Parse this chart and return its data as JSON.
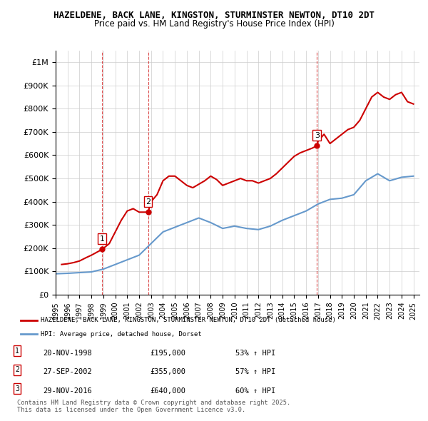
{
  "title": "HAZELDENE, BACK LANE, KINGSTON, STURMINSTER NEWTON, DT10 2DT",
  "subtitle": "Price paid vs. HM Land Registry's House Price Index (HPI)",
  "red_label": "HAZELDENE, BACK LANE, KINGSTON, STURMINSTER NEWTON, DT10 2DT (detached house)",
  "blue_label": "HPI: Average price, detached house, Dorset",
  "transactions": [
    {
      "num": 1,
      "date": "20-NOV-1998",
      "price": 195000,
      "hpi_pct": "53% ↑ HPI",
      "year": 1998.9
    },
    {
      "num": 2,
      "date": "27-SEP-2002",
      "price": 355000,
      "hpi_pct": "57% ↑ HPI",
      "year": 2002.75
    },
    {
      "num": 3,
      "date": "29-NOV-2016",
      "price": 640000,
      "hpi_pct": "60% ↑ HPI",
      "year": 2016.9
    }
  ],
  "footnote": "Contains HM Land Registry data © Crown copyright and database right 2025.\nThis data is licensed under the Open Government Licence v3.0.",
  "ylim": [
    0,
    1050000
  ],
  "xlim_start": 1995,
  "xlim_end": 2025.5,
  "red_color": "#cc0000",
  "blue_color": "#6699cc",
  "vline_color": "#cc0000",
  "grid_color": "#cccccc",
  "bg_color": "#ffffff",
  "hpi_x": [
    1995,
    1996,
    1997,
    1998,
    1999,
    2000,
    2001,
    2002,
    2003,
    2004,
    2005,
    2006,
    2007,
    2008,
    2009,
    2010,
    2011,
    2012,
    2013,
    2014,
    2015,
    2016,
    2017,
    2018,
    2019,
    2020,
    2021,
    2022,
    2023,
    2024,
    2025
  ],
  "hpi_y": [
    90000,
    92000,
    95000,
    98000,
    110000,
    130000,
    150000,
    170000,
    220000,
    270000,
    290000,
    310000,
    330000,
    310000,
    285000,
    295000,
    285000,
    280000,
    295000,
    320000,
    340000,
    360000,
    390000,
    410000,
    415000,
    430000,
    490000,
    520000,
    490000,
    505000,
    510000
  ],
  "red_x": [
    1995.5,
    1996,
    1996.5,
    1997,
    1997.5,
    1998,
    1998.9,
    1999.5,
    2000,
    2000.5,
    2001,
    2001.5,
    2002,
    2002.75,
    2003,
    2003.5,
    2004,
    2004.5,
    2005,
    2005.5,
    2006,
    2006.5,
    2007,
    2007.5,
    2008,
    2008.5,
    2009,
    2009.5,
    2010,
    2010.5,
    2011,
    2011.5,
    2012,
    2012.5,
    2013,
    2013.5,
    2014,
    2014.5,
    2015,
    2015.5,
    2016,
    2016.5,
    2016.9,
    2017,
    2017.5,
    2018,
    2018.5,
    2019,
    2019.5,
    2020,
    2020.5,
    2021,
    2021.5,
    2022,
    2022.5,
    2023,
    2023.5,
    2024,
    2024.5,
    2025
  ],
  "red_y": [
    130000,
    133000,
    138000,
    145000,
    158000,
    170000,
    195000,
    220000,
    270000,
    320000,
    360000,
    370000,
    355000,
    355000,
    400000,
    430000,
    490000,
    510000,
    510000,
    490000,
    470000,
    460000,
    475000,
    490000,
    510000,
    495000,
    470000,
    480000,
    490000,
    500000,
    490000,
    490000,
    480000,
    490000,
    500000,
    520000,
    545000,
    570000,
    595000,
    610000,
    620000,
    630000,
    640000,
    660000,
    690000,
    650000,
    670000,
    690000,
    710000,
    720000,
    750000,
    800000,
    850000,
    870000,
    850000,
    840000,
    860000,
    870000,
    830000,
    820000
  ]
}
